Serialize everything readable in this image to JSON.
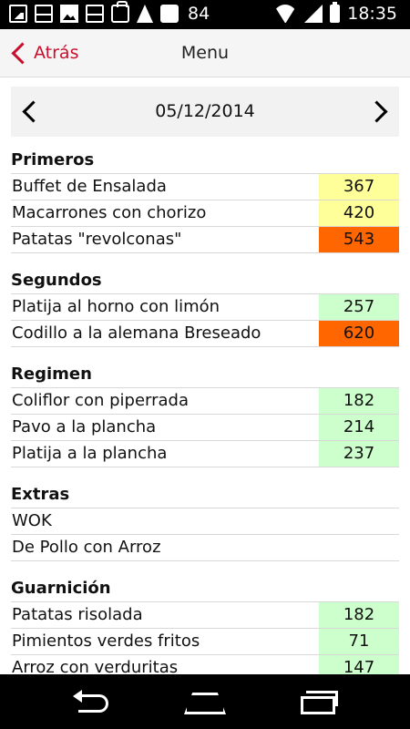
{
  "status_bar": {
    "notification_count": "84",
    "time": "18:35",
    "icons_left": [
      "image-icon",
      "gmail-icon",
      "photo-icon",
      "gmail-icon",
      "shopping-bag-icon",
      "adobe-icon",
      "clipboard-icon"
    ],
    "icons_right": [
      "wifi-icon",
      "signal-icon",
      "battery-icon"
    ]
  },
  "action_bar": {
    "back_label": "Atrás",
    "title": "Menu",
    "accent_color": "#c8102e"
  },
  "date_nav": {
    "date": "05/12/2014",
    "prev_icon": "chevron-left-icon",
    "next_icon": "chevron-right-icon"
  },
  "colors": {
    "yellow": "#ffff99",
    "orange": "#ff6600",
    "green": "#ccffcc"
  },
  "sections": [
    {
      "title": "Primeros",
      "items": [
        {
          "name": "Buffet de Ensalada",
          "kcal": "367",
          "color": "#ffff99"
        },
        {
          "name": "Macarrones con chorizo",
          "kcal": "420",
          "color": "#ffff99"
        },
        {
          "name": "Patatas \"revolconas\"",
          "kcal": "543",
          "color": "#ff6600"
        }
      ]
    },
    {
      "title": "Segundos",
      "items": [
        {
          "name": "Platija al horno con limón",
          "kcal": "257",
          "color": "#ccffcc"
        },
        {
          "name": "Codillo a la alemana Breseado",
          "kcal": "620",
          "color": "#ff6600"
        }
      ]
    },
    {
      "title": "Regimen",
      "items": [
        {
          "name": "Coliflor con piperrada",
          "kcal": "182",
          "color": "#ccffcc"
        },
        {
          "name": "Pavo a la plancha",
          "kcal": "214",
          "color": "#ccffcc"
        },
        {
          "name": "Platija a la plancha",
          "kcal": "237",
          "color": "#ccffcc"
        }
      ]
    },
    {
      "title": "Extras",
      "items": [
        {
          "name": "WOK",
          "kcal": "",
          "color": ""
        },
        {
          "name": "De Pollo con Arroz",
          "kcal": "",
          "color": ""
        }
      ]
    },
    {
      "title": "Guarnición",
      "items": [
        {
          "name": "Patatas risolada",
          "kcal": "182",
          "color": "#ccffcc"
        },
        {
          "name": "Pimientos verdes fritos",
          "kcal": "71",
          "color": "#ccffcc"
        },
        {
          "name": "Arroz con verduritas",
          "kcal": "147",
          "color": "#ccffcc"
        }
      ]
    }
  ],
  "nav_bar": {
    "icons": [
      "back-nav-icon",
      "home-nav-icon",
      "recent-apps-icon"
    ]
  }
}
